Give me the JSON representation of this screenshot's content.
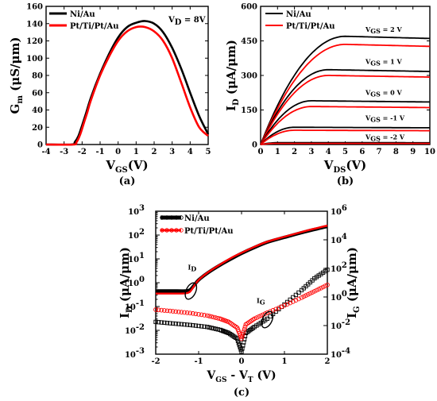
{
  "chart_data": [
    {
      "id": "a",
      "type": "line",
      "panel_label": "(a)",
      "xlabel": "V",
      "xlabel_sub": "GS",
      "xlabel_unit": "(V)",
      "ylabel": "G",
      "ylabel_sub": "m",
      "ylabel_unit": "(μS/μm)",
      "xlim": [
        -4,
        5
      ],
      "ylim": [
        0,
        160
      ],
      "xticks": [
        -4,
        -3,
        -2,
        -1,
        0,
        1,
        2,
        3,
        4,
        5
      ],
      "yticks": [
        0,
        20,
        40,
        60,
        80,
        100,
        120,
        140,
        160
      ],
      "xtick_labels": [
        "-4",
        "-3",
        "-2",
        "-1",
        "0",
        "1",
        "2",
        "3",
        "4",
        "5"
      ],
      "ytick_labels": [
        "0",
        "20",
        "40",
        "60",
        "80",
        "100",
        "120",
        "140",
        "160"
      ],
      "annotation": {
        "text": "V",
        "sub": "D",
        "rest": " = 8V"
      },
      "legend_placement": "top-left",
      "series": [
        {
          "name": "Ni/Au",
          "color": "#000000",
          "points": [
            [
              -4,
              0
            ],
            [
              -2.6,
              0
            ],
            [
              -2.4,
              3
            ],
            [
              -2.2,
              10
            ],
            [
              -2,
              22
            ],
            [
              -1.8,
              35
            ],
            [
              -1.5,
              55
            ],
            [
              -1,
              82
            ],
            [
              -0.5,
              105
            ],
            [
              0,
              124
            ],
            [
              0.5,
              136
            ],
            [
              1,
              141
            ],
            [
              1.5,
              143
            ],
            [
              2,
              140
            ],
            [
              2.5,
              130
            ],
            [
              3,
              112
            ],
            [
              3.5,
              88
            ],
            [
              4,
              60
            ],
            [
              4.5,
              33
            ],
            [
              5,
              12
            ]
          ]
        },
        {
          "name": "Pt/Ti/Pt/Au",
          "color": "#ff0000",
          "points": [
            [
              -4,
              0
            ],
            [
              -2.5,
              0
            ],
            [
              -2.3,
              3
            ],
            [
              -2.1,
              12
            ],
            [
              -1.9,
              25
            ],
            [
              -1.7,
              38
            ],
            [
              -1.5,
              52
            ],
            [
              -1,
              80
            ],
            [
              -0.5,
              102
            ],
            [
              0,
              120
            ],
            [
              0.5,
              131
            ],
            [
              1,
              136
            ],
            [
              1.5,
              136
            ],
            [
              2,
              131
            ],
            [
              2.5,
              120
            ],
            [
              3,
              100
            ],
            [
              3.5,
              72
            ],
            [
              4,
              43
            ],
            [
              4.5,
              20
            ],
            [
              5,
              10
            ]
          ]
        }
      ]
    },
    {
      "id": "b",
      "type": "line",
      "panel_label": "(b)",
      "xlabel": "V",
      "xlabel_sub": "DS",
      "xlabel_unit": "(V)",
      "ylabel": "I",
      "ylabel_sub": "D",
      "ylabel_unit": "(μA/μm)",
      "xlim": [
        0,
        10
      ],
      "ylim": [
        0,
        600
      ],
      "xticks": [
        0,
        1,
        2,
        3,
        4,
        5,
        6,
        7,
        8,
        9,
        10
      ],
      "yticks": [
        0,
        150,
        300,
        450,
        600
      ],
      "xtick_labels": [
        "0",
        "1",
        "2",
        "3",
        "4",
        "5",
        "6",
        "7",
        "8",
        "9",
        "10"
      ],
      "ytick_labels": [
        "0",
        "150",
        "300",
        "450",
        "600"
      ],
      "legend_placement": "top-left",
      "legend": [
        {
          "name": "Ni/Au",
          "color": "#000000"
        },
        {
          "name": "Pt/Ti/Pt/Au",
          "color": "#ff0000"
        }
      ],
      "curve_labels": [
        {
          "main": "V",
          "sub": "GS",
          "rest": " = 2 V",
          "x": 6.2,
          "y": 490
        },
        {
          "main": "V",
          "sub": "GS",
          "rest": " = 1 V",
          "x": 6.2,
          "y": 350
        },
        {
          "main": "V",
          "sub": "GS",
          "rest": " = 0 V",
          "x": 6.2,
          "y": 215
        },
        {
          "main": "V",
          "sub": "GS",
          "rest": " = -1 V",
          "x": 6.2,
          "y": 105
        },
        {
          "main": "V",
          "sub": "GS",
          "rest": " = -2 V",
          "x": 6.2,
          "y": 22
        }
      ],
      "curves": [
        {
          "vgs": 2,
          "material": "Ni/Au",
          "color": "#000000",
          "isat": 470,
          "vsat": 5.0
        },
        {
          "vgs": 2,
          "material": "Pt/Ti/Pt/Au",
          "color": "#ff0000",
          "isat": 435,
          "vsat": 5.0
        },
        {
          "vgs": 1,
          "material": "Ni/Au",
          "color": "#000000",
          "isat": 325,
          "vsat": 4.0
        },
        {
          "vgs": 1,
          "material": "Pt/Ti/Pt/Au",
          "color": "#ff0000",
          "isat": 300,
          "vsat": 4.0
        },
        {
          "vgs": 0,
          "material": "Ni/Au",
          "color": "#000000",
          "isat": 190,
          "vsat": 3.0
        },
        {
          "vgs": 0,
          "material": "Pt/Ti/Pt/Au",
          "color": "#ff0000",
          "isat": 165,
          "vsat": 3.0
        },
        {
          "vgs": -1,
          "material": "Ni/Au",
          "color": "#000000",
          "isat": 75,
          "vsat": 2.0
        },
        {
          "vgs": -1,
          "material": "Pt/Ti/Pt/Au",
          "color": "#ff0000",
          "isat": 62,
          "vsat": 2.0
        },
        {
          "vgs": -2,
          "material": "Ni/Au",
          "color": "#000000",
          "isat": 8,
          "vsat": 1.0
        },
        {
          "vgs": -2,
          "material": "Pt/Ti/Pt/Au",
          "color": "#ff0000",
          "isat": 5,
          "vsat": 1.0
        }
      ]
    },
    {
      "id": "c",
      "type": "scatter",
      "panel_label": "(c)",
      "xlabel": "V",
      "xlabel_sub": "GS",
      "xlabel_mid": " - V",
      "xlabel_sub2": "T",
      "xlabel_unit": " (V)",
      "ylabel": "I",
      "ylabel_sub": "D",
      "ylabel_unit": "(μA/μm)",
      "y2label": "I",
      "y2label_sub": "G",
      "y2label_unit": "(μA/μm)",
      "yscale": "log",
      "xlim": [
        -2,
        2
      ],
      "ylim_exp": [
        -3,
        3
      ],
      "y2lim_exp": [
        -4,
        6
      ],
      "xticks": [
        -2,
        -1,
        0,
        1,
        2
      ],
      "xtick_labels": [
        "-2",
        "-1",
        "0",
        "1",
        "2"
      ],
      "ytick_exps": [
        -3,
        -2,
        -1,
        0,
        1,
        2,
        3
      ],
      "ytick_labels": [
        "-3",
        "-2",
        "-1",
        "0",
        "1",
        "2",
        "3"
      ],
      "y2tick_exps": [
        -4,
        -2,
        0,
        2,
        4,
        6
      ],
      "y2tick_labels": [
        "-4",
        "-2",
        "0",
        "2",
        "4",
        "6"
      ],
      "tick_base": "10",
      "legend_placement": "top-left",
      "annotations": [
        {
          "main": "I",
          "sub": "D",
          "x": -1.15,
          "y_exp": 0.55,
          "ellipse_x": -1.18,
          "ellipse_y_exp": -0.35
        },
        {
          "main": "I",
          "sub": "G",
          "x": 0.45,
          "y_exp": -0.85,
          "ellipse_x": 0.6,
          "ellipse_y_exp": -1.55
        }
      ],
      "series": [
        {
          "name": "Ni/Au",
          "role": "I_D",
          "axis": "left",
          "color": "#000000",
          "points": [
            [
              -2,
              0.45
            ],
            [
              -1.5,
              0.45
            ],
            [
              -1.3,
              0.45
            ],
            [
              -1.2,
              0.5
            ],
            [
              -1.1,
              0.8
            ],
            [
              -1,
              1.3
            ],
            [
              -0.8,
              2.5
            ],
            [
              -0.5,
              5.5
            ],
            [
              -0.2,
              11
            ],
            [
              0,
              17
            ],
            [
              0.3,
              30
            ],
            [
              0.6,
              50
            ],
            [
              1,
              80
            ],
            [
              1.5,
              140
            ],
            [
              2,
              230
            ]
          ]
        },
        {
          "name": "Pt/Ti/Pt/Au",
          "role": "I_D",
          "axis": "left",
          "color": "#ff0000",
          "points": [
            [
              -2,
              0.35
            ],
            [
              -1.5,
              0.35
            ],
            [
              -1.3,
              0.36
            ],
            [
              -1.2,
              0.42
            ],
            [
              -1.1,
              0.75
            ],
            [
              -1,
              1.3
            ],
            [
              -0.8,
              2.6
            ],
            [
              -0.5,
              5.8
            ],
            [
              -0.2,
              12
            ],
            [
              0,
              18
            ],
            [
              0.3,
              32
            ],
            [
              0.6,
              53
            ],
            [
              1,
              85
            ],
            [
              1.5,
              150
            ],
            [
              2,
              250
            ]
          ]
        },
        {
          "name": "Ni/Au",
          "role": "I_G",
          "axis": "right",
          "color": "#000000",
          "points": [
            [
              -2,
              0.018
            ],
            [
              -1.6,
              0.014
            ],
            [
              -1.2,
              0.011
            ],
            [
              -0.8,
              0.008
            ],
            [
              -0.5,
              0.005
            ],
            [
              -0.3,
              0.003
            ],
            [
              -0.1,
              0.0012
            ],
            [
              0,
              0.00015
            ],
            [
              0.1,
              0.003
            ],
            [
              0.3,
              0.008
            ],
            [
              0.6,
              0.03
            ],
            [
              1,
              0.3
            ],
            [
              1.4,
              3
            ],
            [
              1.7,
              20
            ],
            [
              2,
              80
            ]
          ]
        },
        {
          "name": "Pt/Ti/Pt/Au",
          "role": "I_G",
          "axis": "right",
          "color": "#ff0000",
          "points": [
            [
              -2,
              0.13
            ],
            [
              -1.6,
              0.1
            ],
            [
              -1.2,
              0.075
            ],
            [
              -0.8,
              0.05
            ],
            [
              -0.5,
              0.03
            ],
            [
              -0.3,
              0.018
            ],
            [
              -0.1,
              0.007
            ],
            [
              0,
              0.0012
            ],
            [
              0.1,
              0.012
            ],
            [
              0.3,
              0.03
            ],
            [
              0.6,
              0.08
            ],
            [
              1,
              0.25
            ],
            [
              1.4,
              0.9
            ],
            [
              1.7,
              2.5
            ],
            [
              2,
              7
            ]
          ]
        }
      ]
    }
  ]
}
